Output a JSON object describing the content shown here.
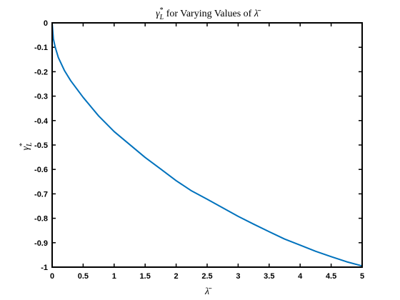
{
  "chart_data": {
    "type": "line",
    "title": "γ*L for Varying Values of λ̄",
    "title_parts": {
      "symbol": "γ",
      "sup": "*",
      "sub": "L",
      "text": " for Varying Values of ",
      "lambda": "λ̄"
    },
    "xlabel": "λ̄",
    "ylabel_parts": {
      "symbol": "γ",
      "sup": "*",
      "sub": "L"
    },
    "xlim": [
      0,
      5
    ],
    "ylim": [
      -1,
      0
    ],
    "xticks": [
      0,
      0.5,
      1,
      1.5,
      2,
      2.5,
      3,
      3.5,
      4,
      4.5,
      5
    ],
    "xtick_labels": [
      "0",
      "0.5",
      "1",
      "1.5",
      "2",
      "2.5",
      "3",
      "3.5",
      "4",
      "4.5",
      "5"
    ],
    "yticks": [
      0,
      -0.1,
      -0.2,
      -0.3,
      -0.4,
      -0.5,
      -0.6,
      -0.7,
      -0.8,
      -0.9,
      -1
    ],
    "ytick_labels": [
      "0",
      "-0.1",
      "-0.2",
      "-0.3",
      "-0.4",
      "-0.5",
      "-0.6",
      "-0.7",
      "-0.8",
      "-0.9",
      "-1"
    ],
    "grid": false,
    "series": [
      {
        "color": "#0072BD",
        "x": [
          0,
          0.02,
          0.05,
          0.1,
          0.2,
          0.3,
          0.5,
          0.75,
          1,
          1.25,
          1.5,
          1.75,
          2,
          2.25,
          2.5,
          2.75,
          3,
          3.25,
          3.5,
          3.75,
          4,
          4.25,
          4.5,
          4.75,
          5
        ],
        "y": [
          0,
          -0.066,
          -0.1,
          -0.142,
          -0.196,
          -0.237,
          -0.305,
          -0.381,
          -0.445,
          -0.498,
          -0.551,
          -0.598,
          -0.646,
          -0.688,
          -0.722,
          -0.757,
          -0.792,
          -0.824,
          -0.855,
          -0.885,
          -0.91,
          -0.935,
          -0.957,
          -0.978,
          -0.995
        ]
      }
    ]
  }
}
